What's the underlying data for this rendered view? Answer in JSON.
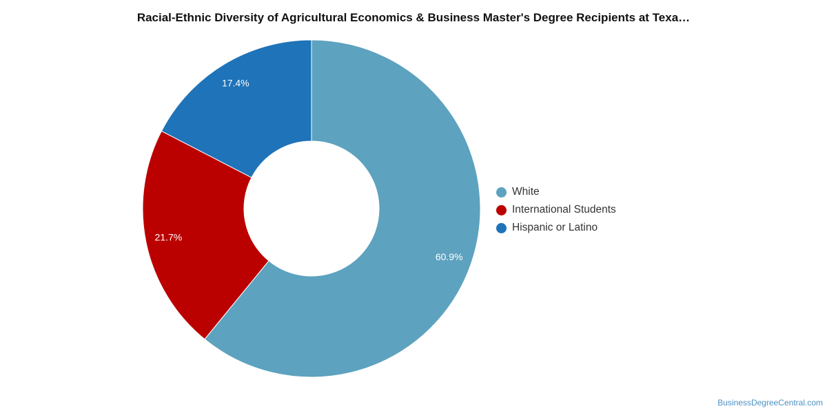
{
  "chart_data": {
    "type": "pie",
    "title": "Racial-Ethnic Diversity of Agricultural Economics & Business Master's Degree Recipients at Texa…",
    "donut": true,
    "legend_position": "right",
    "slices": [
      {
        "label": "White",
        "value": 60.9,
        "value_label": "60.9%",
        "color": "#5da2bf"
      },
      {
        "label": "International Students",
        "value": 21.7,
        "value_label": "21.7%",
        "color": "#bb0000"
      },
      {
        "label": "Hispanic or Latino",
        "value": 17.4,
        "value_label": "17.4%",
        "color": "#1f73b8"
      }
    ]
  },
  "watermark": "BusinessDegreeCentral.com"
}
